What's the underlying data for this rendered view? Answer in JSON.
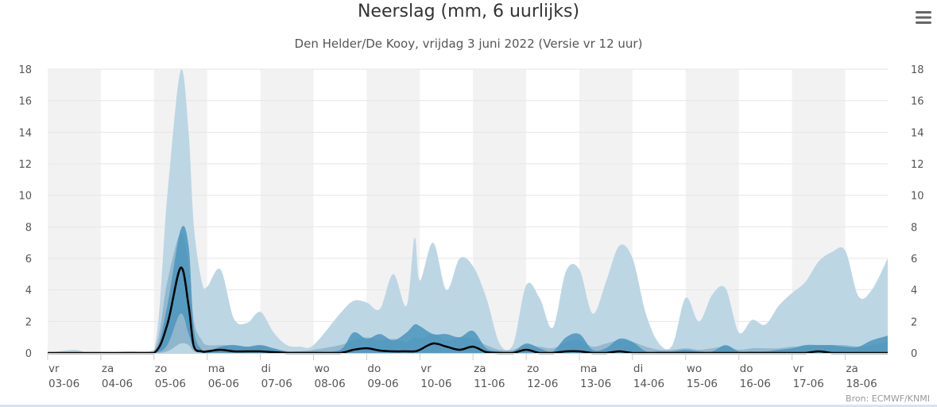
{
  "header": {
    "title": "Neerslag (mm, 6 uurlijks)",
    "subtitle": "Den Helder/De Kooy, vrijdag 3 juni 2022 (Versie vr 12 uur)",
    "menu_icon": "hamburger-menu-icon"
  },
  "credit": "Bron: ECMWF/KNMI",
  "colors": {
    "band_outer": "#bdd6e4",
    "band_middle": "#8fb6cc",
    "band_inner": "#4a95bd",
    "median_line": "#000000",
    "weekend_stripe": "#f2f2f2",
    "grid": "#e6e6e6",
    "axis_text": "#555555"
  },
  "chart_data": {
    "type": "area",
    "title": "Neerslag (mm, 6 uurlijks)",
    "subtitle": "Den Helder/De Kooy, vrijdag 3 juni 2022 (Versie vr 12 uur)",
    "y_ticks": [
      "0",
      "2",
      "4",
      "6",
      "8",
      "10",
      "12",
      "14",
      "16",
      "18"
    ],
    "ylim": [
      0,
      18
    ],
    "xlim": [
      0,
      15.8
    ],
    "x_unit": "days since vr 03-06 00:00",
    "grid": true,
    "shaded_day_bands": [
      [
        0,
        1
      ],
      [
        2,
        3
      ],
      [
        4,
        5
      ],
      [
        6,
        7
      ],
      [
        8,
        9
      ],
      [
        10,
        11
      ],
      [
        12,
        13
      ],
      [
        14,
        15
      ]
    ],
    "x_ticks": [
      {
        "day": "vr",
        "date": "03-06"
      },
      {
        "day": "za",
        "date": "04-06"
      },
      {
        "day": "zo",
        "date": "05-06"
      },
      {
        "day": "ma",
        "date": "06-06"
      },
      {
        "day": "di",
        "date": "07-06"
      },
      {
        "day": "wo",
        "date": "08-06"
      },
      {
        "day": "do",
        "date": "09-06"
      },
      {
        "day": "vr",
        "date": "10-06"
      },
      {
        "day": "za",
        "date": "11-06"
      },
      {
        "day": "zo",
        "date": "12-06"
      },
      {
        "day": "ma",
        "date": "13-06"
      },
      {
        "day": "di",
        "date": "14-06"
      },
      {
        "day": "wo",
        "date": "15-06"
      },
      {
        "day": "do",
        "date": "16-06"
      },
      {
        "day": "vr",
        "date": "17-06"
      },
      {
        "day": "za",
        "date": "18-06"
      }
    ],
    "x": [
      0.0,
      0.5,
      0.75,
      1.0,
      1.5,
      2.0,
      2.25,
      2.5,
      2.65,
      2.75,
      2.9,
      3.0,
      3.25,
      3.5,
      3.75,
      4.0,
      4.25,
      4.5,
      4.75,
      5.0,
      5.5,
      5.75,
      6.0,
      6.25,
      6.5,
      6.75,
      6.9,
      7.0,
      7.25,
      7.5,
      7.75,
      8.0,
      8.25,
      8.5,
      8.75,
      9.0,
      9.25,
      9.5,
      9.75,
      10.0,
      10.25,
      10.5,
      10.75,
      11.0,
      11.25,
      11.5,
      11.75,
      12.0,
      12.25,
      12.5,
      12.75,
      13.0,
      13.25,
      13.5,
      13.75,
      14.0,
      14.25,
      14.5,
      14.75,
      15.0,
      15.25,
      15.5,
      15.8
    ],
    "series": [
      {
        "name": "p90",
        "role": "outer band upper",
        "values": [
          0,
          0.2,
          0,
          0,
          0.1,
          0.2,
          10.0,
          17.9,
          14.0,
          8.0,
          4.5,
          4.2,
          5.3,
          2.2,
          1.9,
          2.6,
          1.3,
          0.5,
          0.4,
          0.5,
          2.5,
          3.3,
          3.2,
          2.8,
          5.0,
          3.0,
          7.3,
          4.6,
          7.0,
          4.0,
          6.0,
          5.5,
          3.5,
          0.6,
          0.5,
          4.3,
          3.5,
          1.6,
          5.2,
          5.3,
          2.5,
          4.5,
          6.8,
          6.0,
          2.5,
          0.6,
          0.5,
          3.5,
          2.0,
          3.7,
          4.1,
          1.3,
          2.1,
          1.8,
          3.0,
          3.8,
          4.5,
          5.8,
          6.4,
          6.5,
          3.6,
          4.0,
          6.0
        ]
      },
      {
        "name": "p75",
        "role": "middle band upper",
        "values": [
          0,
          0,
          0,
          0,
          0,
          0.1,
          4.5,
          7.6,
          5.5,
          2.0,
          0.8,
          0.5,
          0.5,
          0.5,
          0.4,
          0.5,
          0.3,
          0.1,
          0.1,
          0.2,
          0.5,
          0.8,
          1.0,
          0.8,
          0.9,
          0.7,
          1.0,
          0.9,
          1.2,
          0.8,
          1.0,
          0.9,
          0.5,
          0.2,
          0.2,
          0.5,
          0.4,
          0.3,
          0.7,
          0.8,
          0.4,
          0.6,
          0.8,
          0.7,
          0.4,
          0.2,
          0.2,
          0.3,
          0.2,
          0.3,
          0.4,
          0.2,
          0.3,
          0.3,
          0.3,
          0.4,
          0.4,
          0.5,
          0.5,
          0.5,
          0.4,
          0.5,
          0.7
        ]
      },
      {
        "name": "p25",
        "role": "inner band upper",
        "values": [
          0,
          0,
          0,
          0,
          0,
          0,
          3.0,
          7.8,
          6.8,
          1.5,
          0.2,
          0.1,
          0.4,
          0.5,
          0.4,
          0.5,
          0.3,
          0.1,
          0.1,
          0.1,
          0.2,
          1.3,
          0.9,
          1.2,
          0.8,
          1.3,
          1.8,
          1.7,
          1.2,
          1.2,
          1.0,
          1.4,
          0.3,
          0.1,
          0.1,
          0.6,
          0.3,
          0.1,
          1.0,
          1.2,
          0.2,
          0.3,
          0.9,
          0.7,
          0.1,
          0.1,
          0.1,
          0.2,
          0.1,
          0.1,
          0.5,
          0.1,
          0.1,
          0.1,
          0.2,
          0.3,
          0.5,
          0.5,
          0.5,
          0.4,
          0.4,
          0.8,
          1.1
        ]
      },
      {
        "name": "p10",
        "role": "inner band lower",
        "values": [
          0,
          0,
          0,
          0,
          0,
          0,
          0.5,
          2.5,
          1.2,
          0.3,
          0,
          0,
          0,
          0,
          0,
          0,
          0,
          0,
          0,
          0,
          0,
          0,
          0,
          0,
          0,
          0,
          0,
          0,
          0,
          0,
          0,
          0,
          0,
          0,
          0,
          0,
          0,
          0,
          0,
          0,
          0,
          0,
          0,
          0,
          0,
          0,
          0,
          0,
          0,
          0,
          0,
          0,
          0,
          0,
          0,
          0,
          0,
          0,
          0,
          0,
          0,
          0,
          0
        ]
      },
      {
        "name": "min",
        "role": "lightest lower band",
        "values": [
          0,
          0,
          0,
          0,
          0,
          0,
          0.1,
          0.6,
          0.5,
          0.1,
          0,
          0,
          0,
          0,
          0,
          0,
          0,
          0,
          0,
          0,
          0,
          0,
          0,
          0,
          0,
          0,
          0,
          0,
          0,
          0,
          0,
          0,
          0,
          0,
          0,
          0,
          0,
          0,
          0,
          0,
          0,
          0,
          0,
          0,
          0,
          0,
          0,
          0,
          0,
          0,
          0,
          0,
          0,
          0,
          0,
          0,
          0,
          0,
          0,
          0,
          0,
          0,
          0
        ]
      },
      {
        "name": "median",
        "role": "line",
        "values": [
          0,
          0,
          0,
          0,
          0,
          0,
          1.8,
          5.4,
          3.0,
          0.4,
          0.1,
          0.1,
          0.2,
          0.1,
          0.1,
          0.1,
          0.05,
          0,
          0,
          0,
          0,
          0.2,
          0.3,
          0.15,
          0.1,
          0.1,
          0.1,
          0.2,
          0.6,
          0.4,
          0.2,
          0.4,
          0.05,
          0,
          0,
          0.2,
          0,
          0,
          0.1,
          0.1,
          0,
          0,
          0.1,
          0,
          0,
          0,
          0,
          0,
          0,
          0,
          0,
          0,
          0,
          0,
          0,
          0,
          0,
          0.1,
          0,
          0,
          0,
          0,
          0
        ]
      }
    ]
  }
}
